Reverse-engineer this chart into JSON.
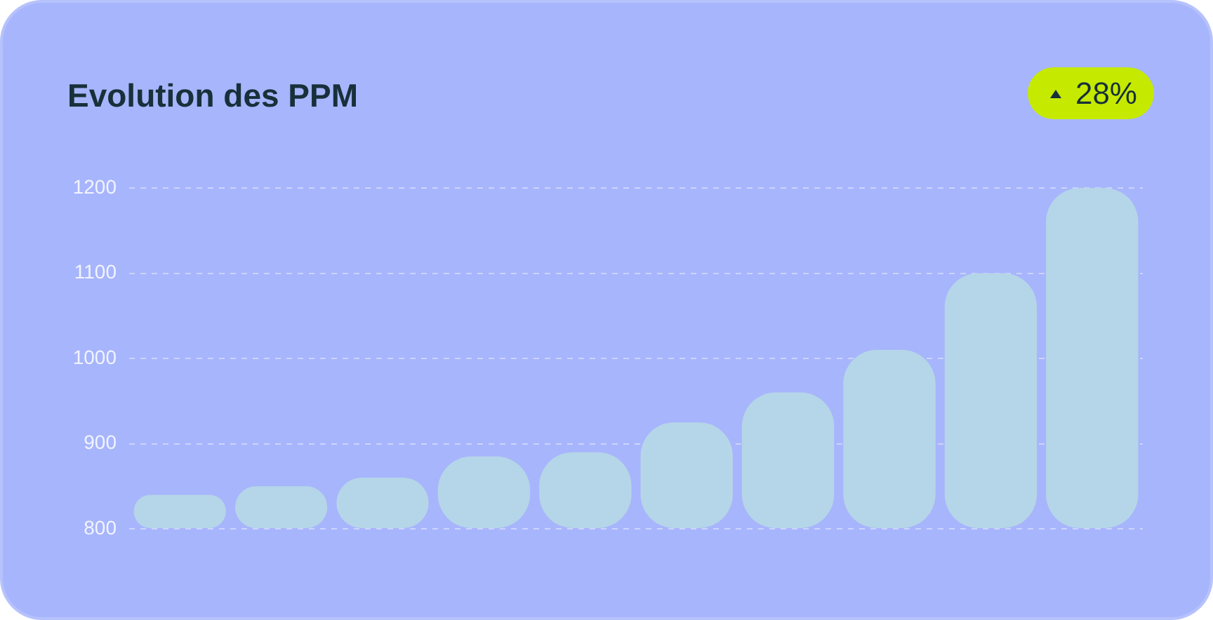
{
  "chart_data": {
    "type": "bar",
    "title": "Evolution des PPM",
    "annotations": [
      "28%"
    ],
    "categories": [
      null,
      null,
      null,
      null,
      null,
      null,
      null,
      null,
      null,
      null
    ],
    "values": [
      840,
      850,
      860,
      885,
      890,
      925,
      960,
      1010,
      1100,
      1200
    ],
    "color": "#b5d5e8",
    "ylim": [
      800,
      1200
    ],
    "yticks": [
      800,
      900,
      1000,
      1100,
      1200
    ],
    "grid": "y",
    "tick_labels": "y"
  }
}
